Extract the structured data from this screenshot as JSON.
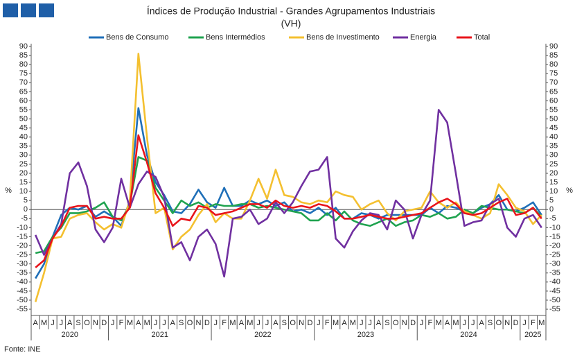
{
  "chart_data": {
    "type": "line",
    "title": "Índices de Produção Industrial - Grandes Agrupamentos Industriais",
    "subtitle": "(VH)",
    "source": "Fonte: INE",
    "ylabel": "%",
    "y2label": "%",
    "categories": [
      "A",
      "M",
      "J",
      "J",
      "A",
      "S",
      "O",
      "N",
      "D",
      "J",
      "F",
      "M",
      "A",
      "M",
      "J",
      "J",
      "A",
      "S",
      "O",
      "N",
      "D",
      "J",
      "F",
      "M",
      "A",
      "M",
      "J",
      "J",
      "A",
      "S",
      "O",
      "N",
      "D",
      "J",
      "F",
      "M",
      "A",
      "M",
      "J",
      "J",
      "A",
      "S",
      "O",
      "N",
      "D",
      "J",
      "F",
      "M",
      "A",
      "M",
      "J",
      "J",
      "A",
      "S",
      "O",
      "N",
      "D",
      "J",
      "F",
      "M"
    ],
    "years": [
      "2020",
      "2021",
      "2022",
      "2023",
      "2024",
      "2025"
    ],
    "ylim": [
      -55,
      90
    ],
    "yticks": [
      -55,
      -50,
      -45,
      -40,
      -35,
      -30,
      -25,
      -20,
      -15,
      -10,
      -5,
      0,
      5,
      10,
      15,
      20,
      25,
      30,
      35,
      40,
      45,
      50,
      55,
      60,
      65,
      70,
      75,
      80,
      85,
      90
    ],
    "y2lim": [
      -55,
      90
    ],
    "y2ticks": [
      -55,
      -50,
      -45,
      -40,
      -35,
      -30,
      -25,
      -20,
      -15,
      -10,
      -5,
      0,
      5,
      10,
      15,
      20,
      25,
      30,
      35,
      40,
      45,
      50,
      55,
      60,
      65,
      70,
      75,
      80,
      85,
      90
    ],
    "series": [
      {
        "name": "Bens de Consumo",
        "color": "#1f6fb8",
        "values": [
          -38,
          -30,
          -15,
          -3,
          1,
          0,
          2,
          -4,
          -1,
          -4,
          -9,
          5,
          56,
          30,
          15,
          8,
          -1,
          -2,
          3,
          11,
          4,
          1,
          12,
          2,
          2,
          5,
          3,
          5,
          2,
          4,
          -1,
          0,
          -2,
          1,
          -3,
          1,
          -5,
          -5,
          -2,
          -3,
          -5,
          -3,
          -3,
          -3,
          -3,
          -3,
          1,
          -2,
          2,
          1,
          -1,
          -2,
          1,
          3,
          8,
          0,
          -1,
          1,
          4,
          -3
        ]
      },
      {
        "name": "Bens Intermédios",
        "color": "#1fa34f",
        "values": [
          -24,
          -23,
          -15,
          -10,
          -2,
          -2,
          -1,
          1,
          4,
          -4,
          -6,
          3,
          29,
          27,
          12,
          5,
          -2,
          5,
          2,
          4,
          1,
          3,
          2,
          2,
          3,
          3,
          1,
          2,
          1,
          0,
          -1,
          -2,
          -6,
          -6,
          -2,
          -6,
          -1,
          -6,
          -8,
          -9,
          -7,
          -5,
          -9,
          -7,
          -6,
          -3,
          -4,
          -2,
          -5,
          -4,
          0,
          -2,
          2,
          1,
          0,
          0,
          -1,
          -2,
          1,
          -4
        ]
      },
      {
        "name": "Bens de Investimento",
        "color": "#f4c030",
        "values": [
          -51,
          -35,
          -16,
          -15,
          -5,
          -3,
          -2,
          -7,
          -11,
          -8,
          -10,
          5,
          86,
          40,
          -2,
          1,
          -22,
          -15,
          -11,
          -3,
          3,
          -7,
          -2,
          -5,
          -5,
          5,
          17,
          6,
          22,
          8,
          7,
          4,
          3,
          5,
          4,
          10,
          8,
          7,
          0,
          3,
          5,
          -2,
          -6,
          -1,
          0,
          1,
          10,
          4,
          1,
          4,
          -1,
          -3,
          -5,
          -2,
          14,
          8,
          1,
          -1,
          -8,
          -3
        ]
      },
      {
        "name": "Energia",
        "color": "#7030a0",
        "values": [
          -14,
          -25,
          -16,
          -8,
          20,
          26,
          13,
          -11,
          -18,
          -10,
          17,
          1,
          14,
          21,
          18,
          7,
          -21,
          -18,
          -28,
          -15,
          -11,
          -19,
          -37,
          -5,
          -4,
          0,
          -8,
          -5,
          4,
          -2,
          4,
          13,
          21,
          22,
          29,
          -16,
          -21,
          -12,
          -6,
          -2,
          -3,
          -11,
          5,
          0,
          -16,
          -3,
          5,
          55,
          48,
          20,
          -9,
          -7,
          -6,
          3,
          6,
          -10,
          -15,
          -5,
          -3,
          -10
        ]
      },
      {
        "name": "Total",
        "color": "#e8141b",
        "values": [
          -32,
          -28,
          -16,
          -9,
          1,
          2,
          2,
          -5,
          -4,
          -5,
          -5,
          1,
          41,
          26,
          9,
          1,
          -9,
          -5,
          -6,
          2,
          1,
          -3,
          -2,
          -1,
          1,
          3,
          3,
          1,
          5,
          2,
          1,
          2,
          1,
          3,
          2,
          -1,
          -5,
          -5,
          -4,
          -3,
          -4,
          -5,
          -5,
          -4,
          -3,
          -2,
          1,
          4,
          6,
          3,
          -2,
          -3,
          -2,
          1,
          4,
          6,
          -3,
          -2,
          1,
          -5
        ]
      }
    ]
  }
}
